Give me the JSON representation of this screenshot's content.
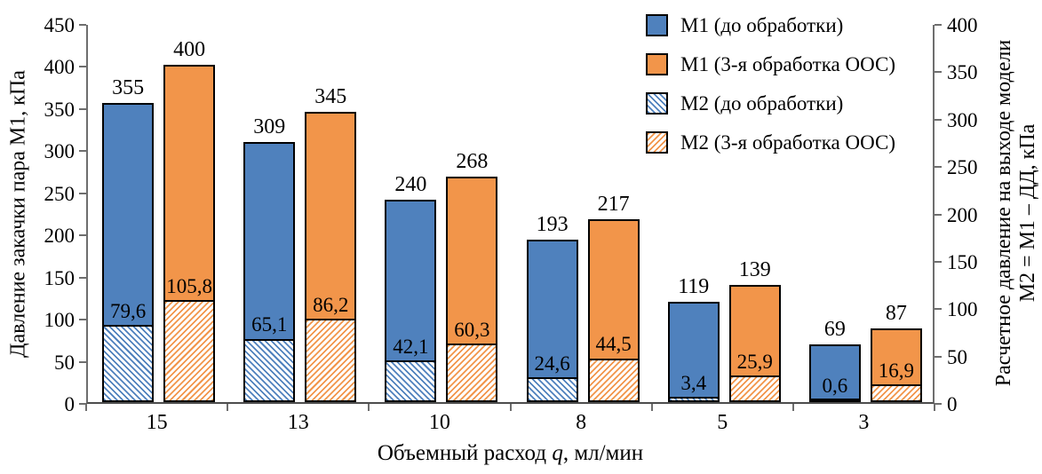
{
  "colors": {
    "m1_blue": "#4F81BD",
    "m1_orange": "#F2954A",
    "axis_line": "#6e6e6e",
    "bar_border": "#000000",
    "background": "#ffffff",
    "text": "#000000"
  },
  "chart_data": {
    "type": "bar",
    "title": "",
    "xlabel": "Объемный расход q, мл/мин",
    "xlabel_parts": {
      "text": "Объемный расход ",
      "var": "q",
      "unit": ", мл/мин"
    },
    "ylabel_left": "Давление закачки пара М1, кПа",
    "ylabel_right_line1": "Расчетное давление на выходе модели",
    "ylabel_right_line2": "М2 = М1 – ДД, кПа",
    "categories": [
      "15",
      "13",
      "10",
      "8",
      "5",
      "3"
    ],
    "axes": {
      "left": {
        "min": 0,
        "max": 450,
        "step": 50,
        "ticks": [
          0,
          50,
          100,
          150,
          200,
          250,
          300,
          350,
          400,
          450
        ]
      },
      "right": {
        "min": 0,
        "max": 400,
        "step": 50,
        "ticks": [
          0,
          50,
          100,
          150,
          200,
          250,
          300,
          350,
          400
        ]
      }
    },
    "grid": "off",
    "legend_position": "top-right",
    "series": [
      {
        "key": "m1-pre",
        "name": "М1 (до обработки)",
        "style": "solid",
        "color": "#4F81BD",
        "axis": "left",
        "values": [
          355,
          309,
          240,
          193,
          119,
          69
        ],
        "labels": [
          "355",
          "309",
          "240",
          "193",
          "119",
          "69"
        ]
      },
      {
        "key": "m1-ooc",
        "name": "М1 (3-я обработка ООС)",
        "style": "solid",
        "color": "#F2954A",
        "axis": "left",
        "values": [
          400,
          345,
          268,
          217,
          139,
          87
        ],
        "labels": [
          "400",
          "345",
          "268",
          "217",
          "139",
          "87"
        ]
      },
      {
        "key": "m2-pre",
        "name": "М2 (до обработки)",
        "style": "hatch",
        "hatch_angle": 45,
        "color": "#4F81BD",
        "axis": "right",
        "values": [
          79.6,
          65.1,
          42.1,
          24.6,
          3.4,
          0.6
        ],
        "labels": [
          "79,6",
          "65,1",
          "42,1",
          "24,6",
          "3,4",
          "0,6"
        ]
      },
      {
        "key": "m2-ooc",
        "name": "М2 (3-я обработка ООС)",
        "style": "hatch",
        "hatch_angle": 135,
        "color": "#F2954A",
        "axis": "right",
        "values": [
          105.8,
          86.2,
          60.3,
          44.5,
          25.9,
          16.9
        ],
        "labels": [
          "105,8",
          "86,2",
          "60,3",
          "44,5",
          "25,9",
          "16,9"
        ]
      }
    ]
  }
}
